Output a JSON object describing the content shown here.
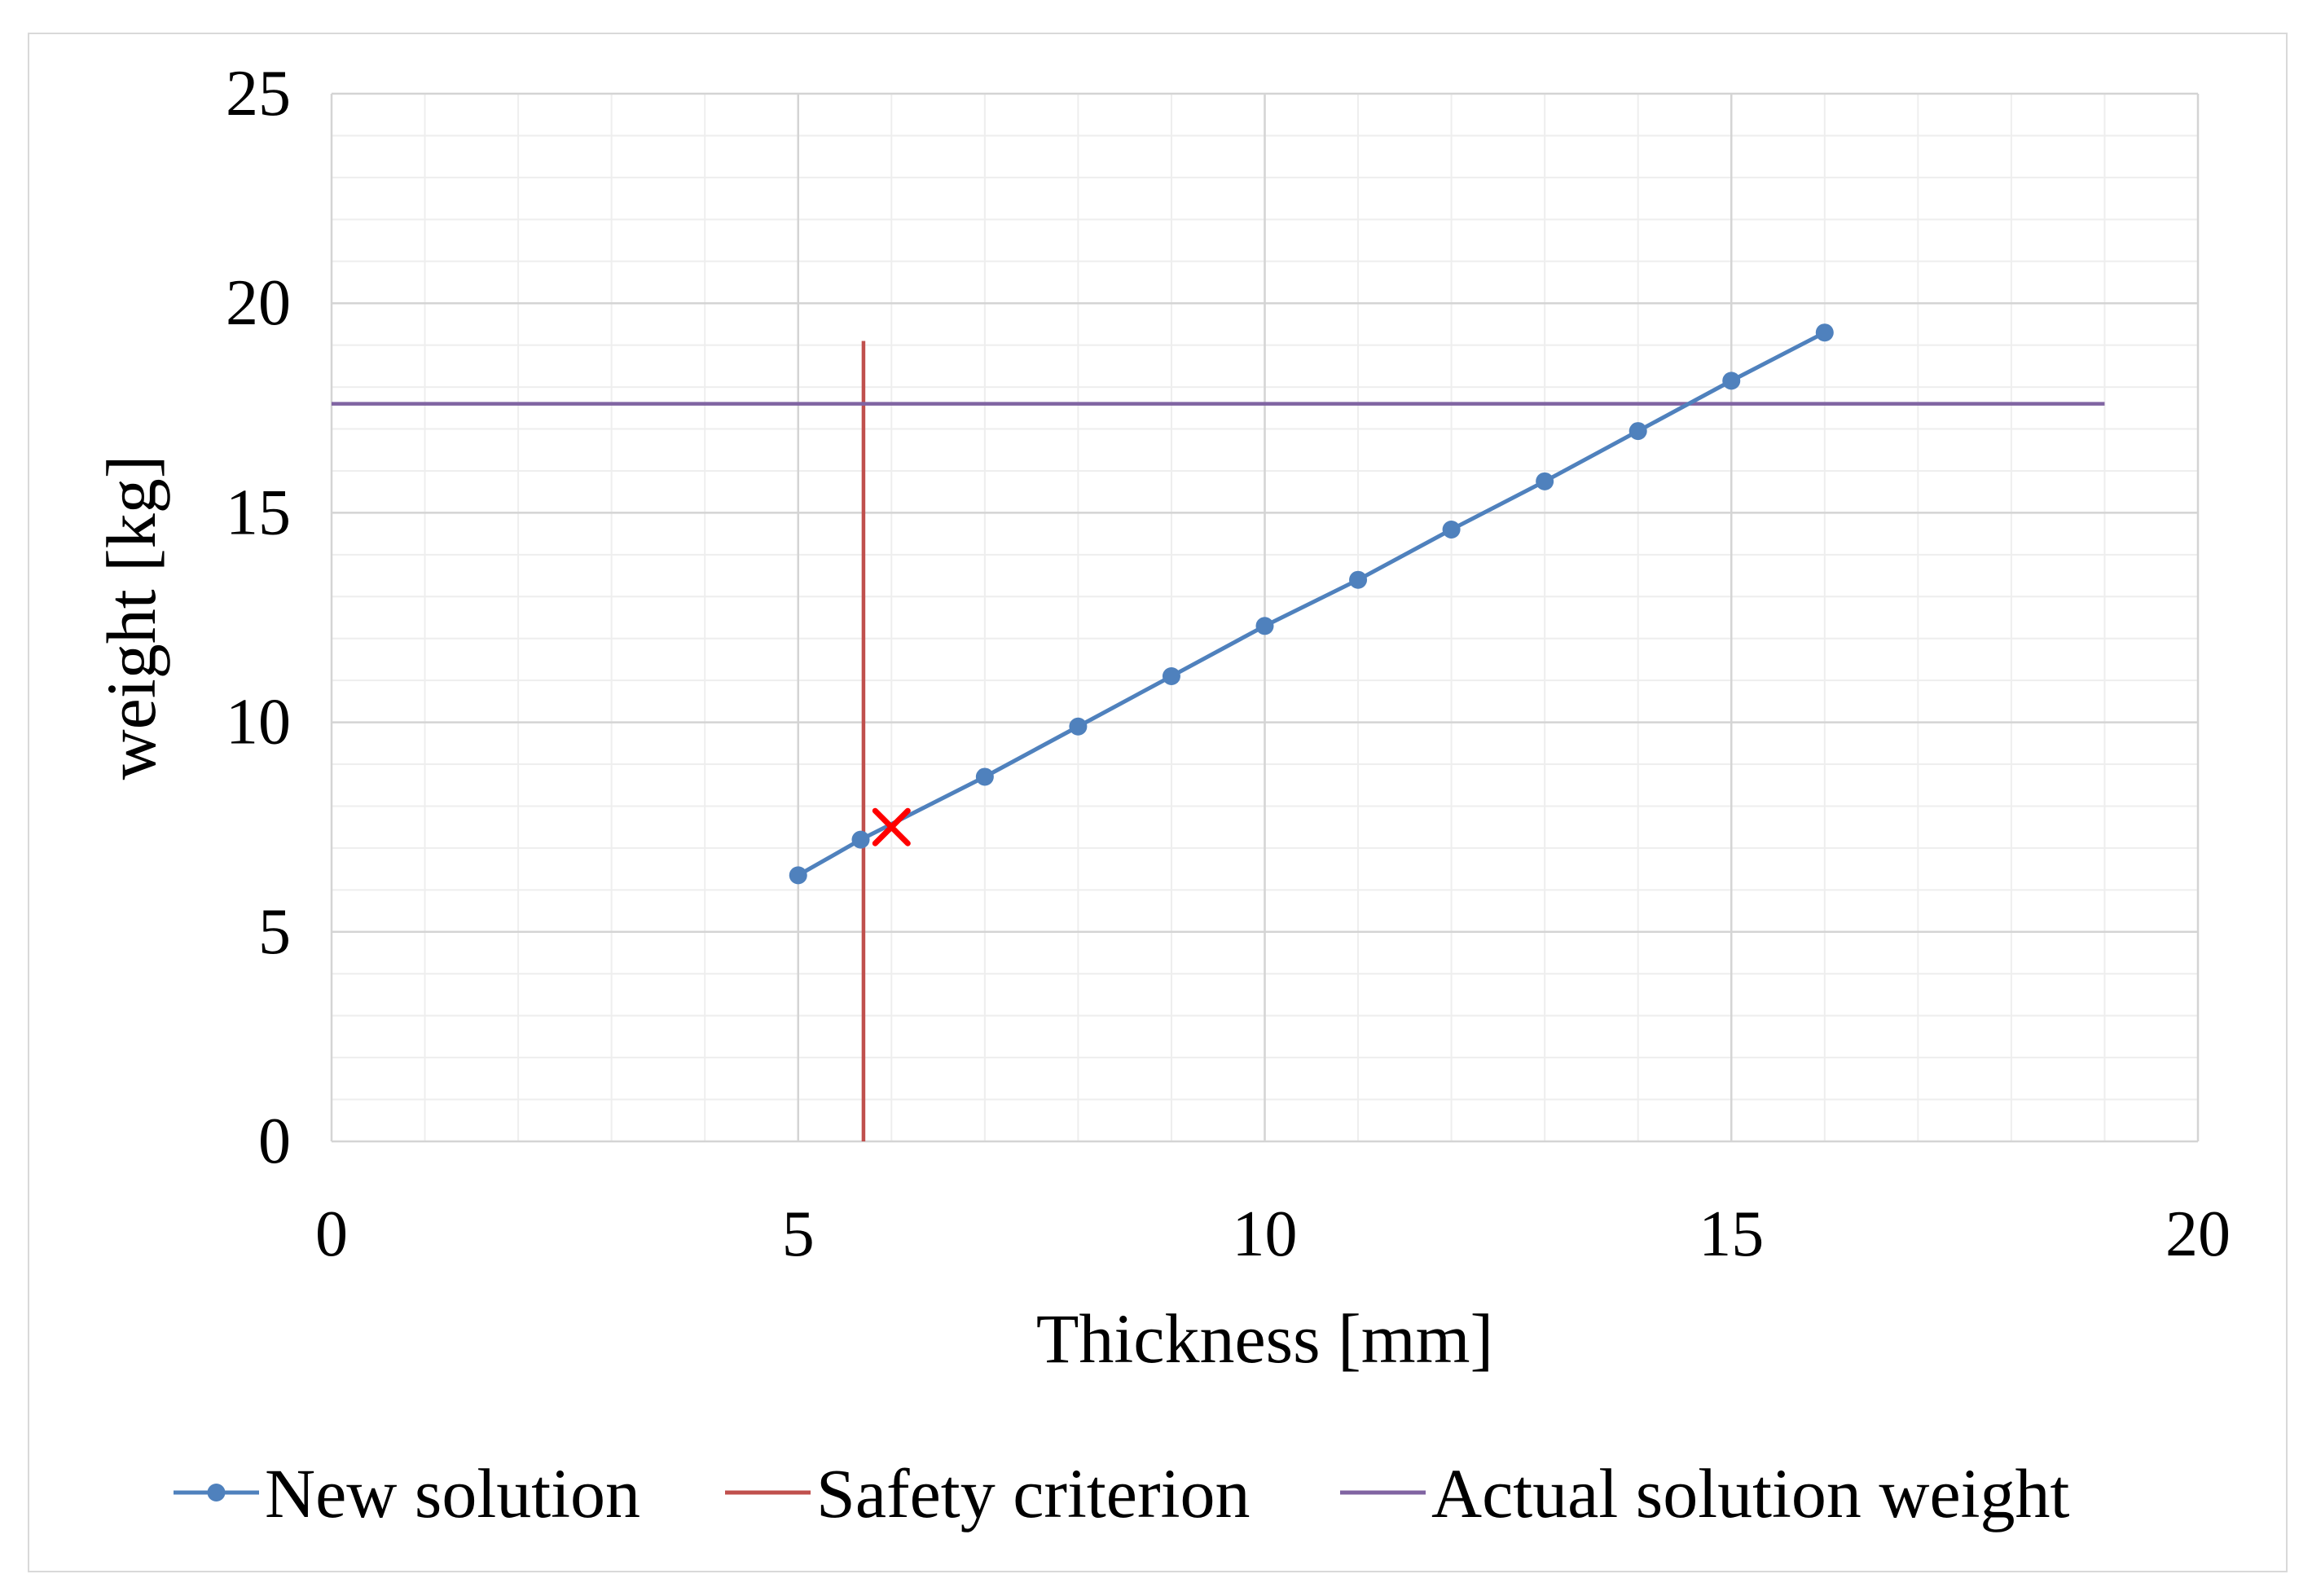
{
  "chart_data": {
    "type": "line",
    "title": "",
    "xlabel": "Thickness [mm]",
    "ylabel": "weight [kg]",
    "xlim": [
      0,
      20
    ],
    "ylim": [
      0,
      25
    ],
    "xticks": [
      0,
      5,
      10,
      15,
      20
    ],
    "yticks": [
      0,
      5,
      10,
      15,
      20,
      25
    ],
    "grid": true,
    "legend_position": "bottom",
    "series": [
      {
        "name": "New solution",
        "color": "#4f81bd",
        "marker": "circle",
        "x": [
          5,
          5.67,
          7,
          8,
          9,
          10,
          11,
          12,
          13,
          14,
          15,
          16
        ],
        "y": [
          6.35,
          7.2,
          8.7,
          9.9,
          11.1,
          12.3,
          13.4,
          14.6,
          15.75,
          16.95,
          18.15,
          19.3
        ]
      },
      {
        "name": "Safety criterion",
        "color": "#c0504d",
        "x": [
          5.7,
          5.7
        ],
        "y": [
          0,
          19.1
        ]
      },
      {
        "name": "Actual solution weight",
        "color": "#8064a2",
        "x": [
          0,
          19
        ],
        "y": [
          17.6,
          17.6
        ]
      }
    ],
    "annotations": [
      {
        "type": "x-marker",
        "color": "#ff0000",
        "x": 6.0,
        "y": 7.5
      }
    ]
  }
}
